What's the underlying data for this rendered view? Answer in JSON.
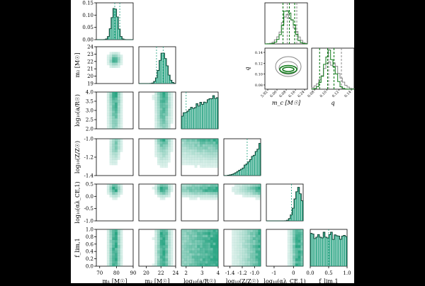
{
  "chart_data": {
    "type": "corner",
    "parameters": [
      {
        "key": "m1",
        "label": "m₁ [M☉]",
        "range": [
          68,
          90
        ],
        "ticks": [
          "70",
          "80",
          "90"
        ],
        "tick_values": [
          70,
          80,
          90
        ],
        "hist_peak": 79,
        "hist_width": 1.8,
        "median": 79,
        "upper_line": 82
      },
      {
        "key": "m2",
        "label": "m₂ [M☉]",
        "range": [
          19,
          24
        ],
        "ticks": [
          "20",
          "22",
          "24"
        ],
        "tick_values": [
          20,
          22,
          24
        ],
        "hist_peak": 22.3,
        "hist_width": 0.5,
        "median": 21.4,
        "upper_line": 22.3
      },
      {
        "key": "loga",
        "label": "log₁₀(a/R☉)",
        "range": [
          1.7,
          4.0
        ],
        "ticks": [
          "2",
          "3",
          "4"
        ],
        "tick_values": [
          2,
          3,
          4
        ],
        "hist_shape": "rising",
        "median": 2.0
      },
      {
        "key": "logZ",
        "label": "log₁₀(Z/Z☉)",
        "range": [
          -1.5,
          -0.9
        ],
        "ticks": [
          "-1.4",
          "-1.2",
          "-1.0"
        ],
        "tick_values": [
          -1.4,
          -1.2,
          -1.0
        ],
        "hist_shape": "rising_steep",
        "median": -1.12
      },
      {
        "key": "logal",
        "label": "log₁₀(αλ_CE,1)",
        "range": [
          -1.4,
          0.5
        ],
        "ticks": [
          "-1",
          "0"
        ],
        "tick_values": [
          -1,
          0
        ],
        "hist_peak": 0.25,
        "hist_width": 0.2,
        "median": -0.1
      },
      {
        "key": "flim",
        "label": "f_lim,1",
        "range": [
          0,
          1
        ],
        "ticks": [
          "0.0",
          "0.5",
          "1.0"
        ],
        "tick_values": [
          0,
          0.5,
          1.0
        ],
        "hist_shape": "flat",
        "median": 0.5
      }
    ],
    "y_axis_ticks": {
      "m1": [
        "0.00",
        "0.05",
        "0.10",
        "0.15"
      ],
      "m2": [
        "19",
        "20",
        "21",
        "22",
        "23",
        "24"
      ],
      "loga": [
        "2.0",
        "2.5",
        "3.0",
        "3.5",
        "4.0"
      ],
      "logZ": [
        "-1.4",
        "-1.2",
        "-1.0"
      ],
      "logal": [
        "-1.0",
        "-0.5",
        "0.0",
        "0.5"
      ],
      "flim": [
        "0.0",
        "0.2",
        "0.4",
        "0.6",
        "0.8",
        "1.0"
      ]
    },
    "y_axis_labels": {
      "m2": "m₂ [M☉]",
      "loga": "log₁₀(a/R☉)",
      "logZ": "log₁₀(Z/Z☉)",
      "logal": "log₁₀(αλ_CE,1)",
      "flim": "f_lim,1"
    },
    "inset": {
      "mc_label": "m_c [M☉]",
      "q_label": "q",
      "mc_ticks": [
        "5.92",
        "6.00",
        "6.08",
        "6.16",
        "6.24"
      ],
      "q_ticks": [
        "0.08",
        "0.10",
        "0.12",
        "0.14"
      ],
      "q_y_ticks": [
        "0.08",
        "0.10",
        "0.12",
        "0.14"
      ],
      "q_y_label": "q",
      "mc_range": [
        5.88,
        6.28
      ],
      "q_range": [
        0.07,
        0.15
      ],
      "mc_green_lines": [
        6.05,
        6.11,
        6.16
      ],
      "mc_gray_lines": [
        6.09,
        6.18
      ],
      "q_green_lines": [
        0.085,
        0.1,
        0.112
      ],
      "q_gray_lines": [
        0.102,
        0.126
      ]
    },
    "colors": {
      "main": "#1a9e7a",
      "dark": "#0a6e4a",
      "gray": "#888888",
      "green_line": "#117a1a"
    }
  }
}
